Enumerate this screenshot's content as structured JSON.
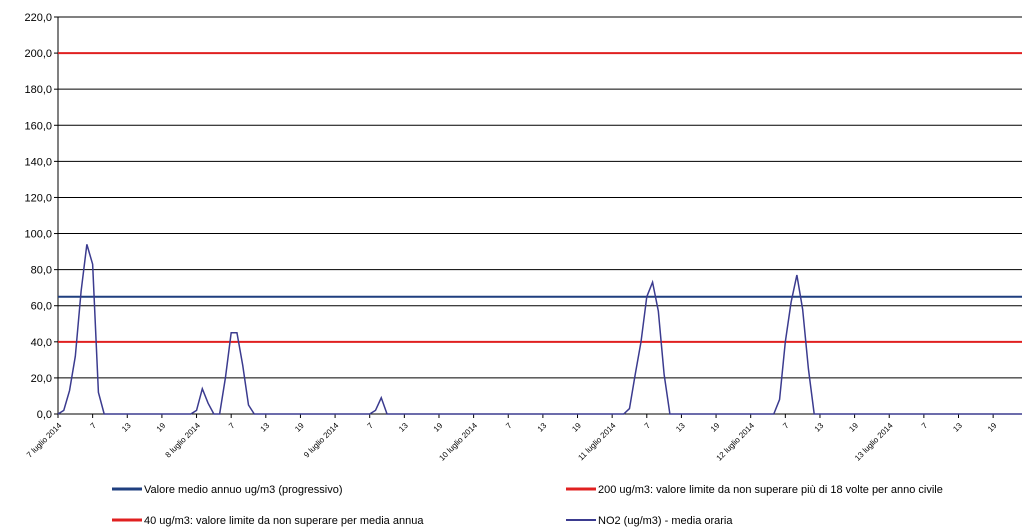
{
  "chart_data": {
    "type": "line",
    "ylim": [
      0,
      220
    ],
    "yticks": [
      {
        "value": 0,
        "label": "0,0"
      },
      {
        "value": 20,
        "label": "20,0"
      },
      {
        "value": 40,
        "label": "40,0"
      },
      {
        "value": 60,
        "label": "60,0"
      },
      {
        "value": 80,
        "label": "80,0"
      },
      {
        "value": 100,
        "label": "100,0"
      },
      {
        "value": 120,
        "label": "120,0"
      },
      {
        "value": 140,
        "label": "140,0"
      },
      {
        "value": 160,
        "label": "160,0"
      },
      {
        "value": 180,
        "label": "180,0"
      },
      {
        "value": 200,
        "label": "200,0"
      },
      {
        "value": 220,
        "label": "220,0"
      }
    ],
    "grid": true,
    "categories": [
      "7 luglio 2014",
      null,
      null,
      null,
      null,
      null,
      "7",
      null,
      null,
      null,
      null,
      null,
      "13",
      null,
      null,
      null,
      null,
      null,
      "19",
      null,
      null,
      null,
      null,
      null,
      "8 luglio 2014",
      null,
      null,
      null,
      null,
      null,
      "7",
      null,
      null,
      null,
      null,
      null,
      "13",
      null,
      null,
      null,
      null,
      null,
      "19",
      null,
      null,
      null,
      null,
      null,
      "9 luglio 2014",
      null,
      null,
      null,
      null,
      null,
      "7",
      null,
      null,
      null,
      null,
      null,
      "13",
      null,
      null,
      null,
      null,
      null,
      "19",
      null,
      null,
      null,
      null,
      null,
      "10 luglio 2014",
      null,
      null,
      null,
      null,
      null,
      "7",
      null,
      null,
      null,
      null,
      null,
      "13",
      null,
      null,
      null,
      null,
      null,
      "19",
      null,
      null,
      null,
      null,
      null,
      "11 luglio 2014",
      null,
      null,
      null,
      null,
      null,
      "7",
      null,
      null,
      null,
      null,
      null,
      "13",
      null,
      null,
      null,
      null,
      null,
      "19",
      null,
      null,
      null,
      null,
      null,
      "12 luglio 2014",
      null,
      null,
      null,
      null,
      null,
      "7",
      null,
      null,
      null,
      null,
      null,
      "13",
      null,
      null,
      null,
      null,
      null,
      "19",
      null,
      null,
      null,
      null,
      null,
      "13 luglio 2014",
      null,
      null,
      null,
      null,
      null,
      "7",
      null,
      null,
      null,
      null,
      null,
      "13",
      null,
      null,
      null,
      null,
      null,
      "19",
      null,
      null,
      null,
      null,
      null
    ],
    "reference_lines": [
      {
        "name": "Valore medio annuo ug/m3 (progressivo)",
        "color": "#1f3f7f",
        "value": 65
      },
      {
        "name": "200 ug/m3: valore limite da non superare più di 18 volte per anno civile",
        "color": "#e02020",
        "value": 200
      },
      {
        "name": "40 ug/m3: valore limite da non superare per media annua",
        "color": "#e02020",
        "value": 40
      }
    ],
    "series": [
      {
        "name": "NO2 (ug/m3)  - media oraria",
        "color": "#3b3b8f",
        "values": [
          0,
          2,
          13,
          32,
          68,
          94,
          83,
          12,
          0,
          0,
          0,
          0,
          0,
          0,
          0,
          0,
          0,
          0,
          0,
          0,
          0,
          0,
          0,
          0,
          2,
          14,
          6,
          0,
          0,
          20,
          45,
          45,
          27,
          5,
          0,
          0,
          0,
          0,
          0,
          0,
          0,
          0,
          0,
          0,
          0,
          0,
          0,
          0,
          0,
          0,
          0,
          0,
          0,
          0,
          0,
          2,
          9,
          0,
          0,
          0,
          0,
          0,
          0,
          0,
          0,
          0,
          0,
          0,
          0,
          0,
          0,
          0,
          0,
          0,
          0,
          0,
          0,
          0,
          0,
          0,
          0,
          0,
          0,
          0,
          0,
          0,
          0,
          0,
          0,
          0,
          0,
          0,
          0,
          0,
          0,
          0,
          0,
          0,
          0,
          3,
          22,
          40,
          65,
          73,
          57,
          22,
          0,
          0,
          0,
          0,
          0,
          0,
          0,
          0,
          0,
          0,
          0,
          0,
          0,
          0,
          0,
          0,
          0,
          0,
          0,
          8,
          40,
          62,
          77,
          58,
          25,
          0,
          0,
          0,
          0,
          0,
          0,
          0,
          0,
          0,
          0,
          0,
          0,
          0,
          0,
          0,
          0,
          0,
          0,
          0,
          0,
          0,
          0,
          0,
          0,
          0,
          0,
          0,
          0,
          0,
          0,
          0,
          0,
          0,
          0,
          0,
          0,
          0
        ]
      }
    ]
  }
}
